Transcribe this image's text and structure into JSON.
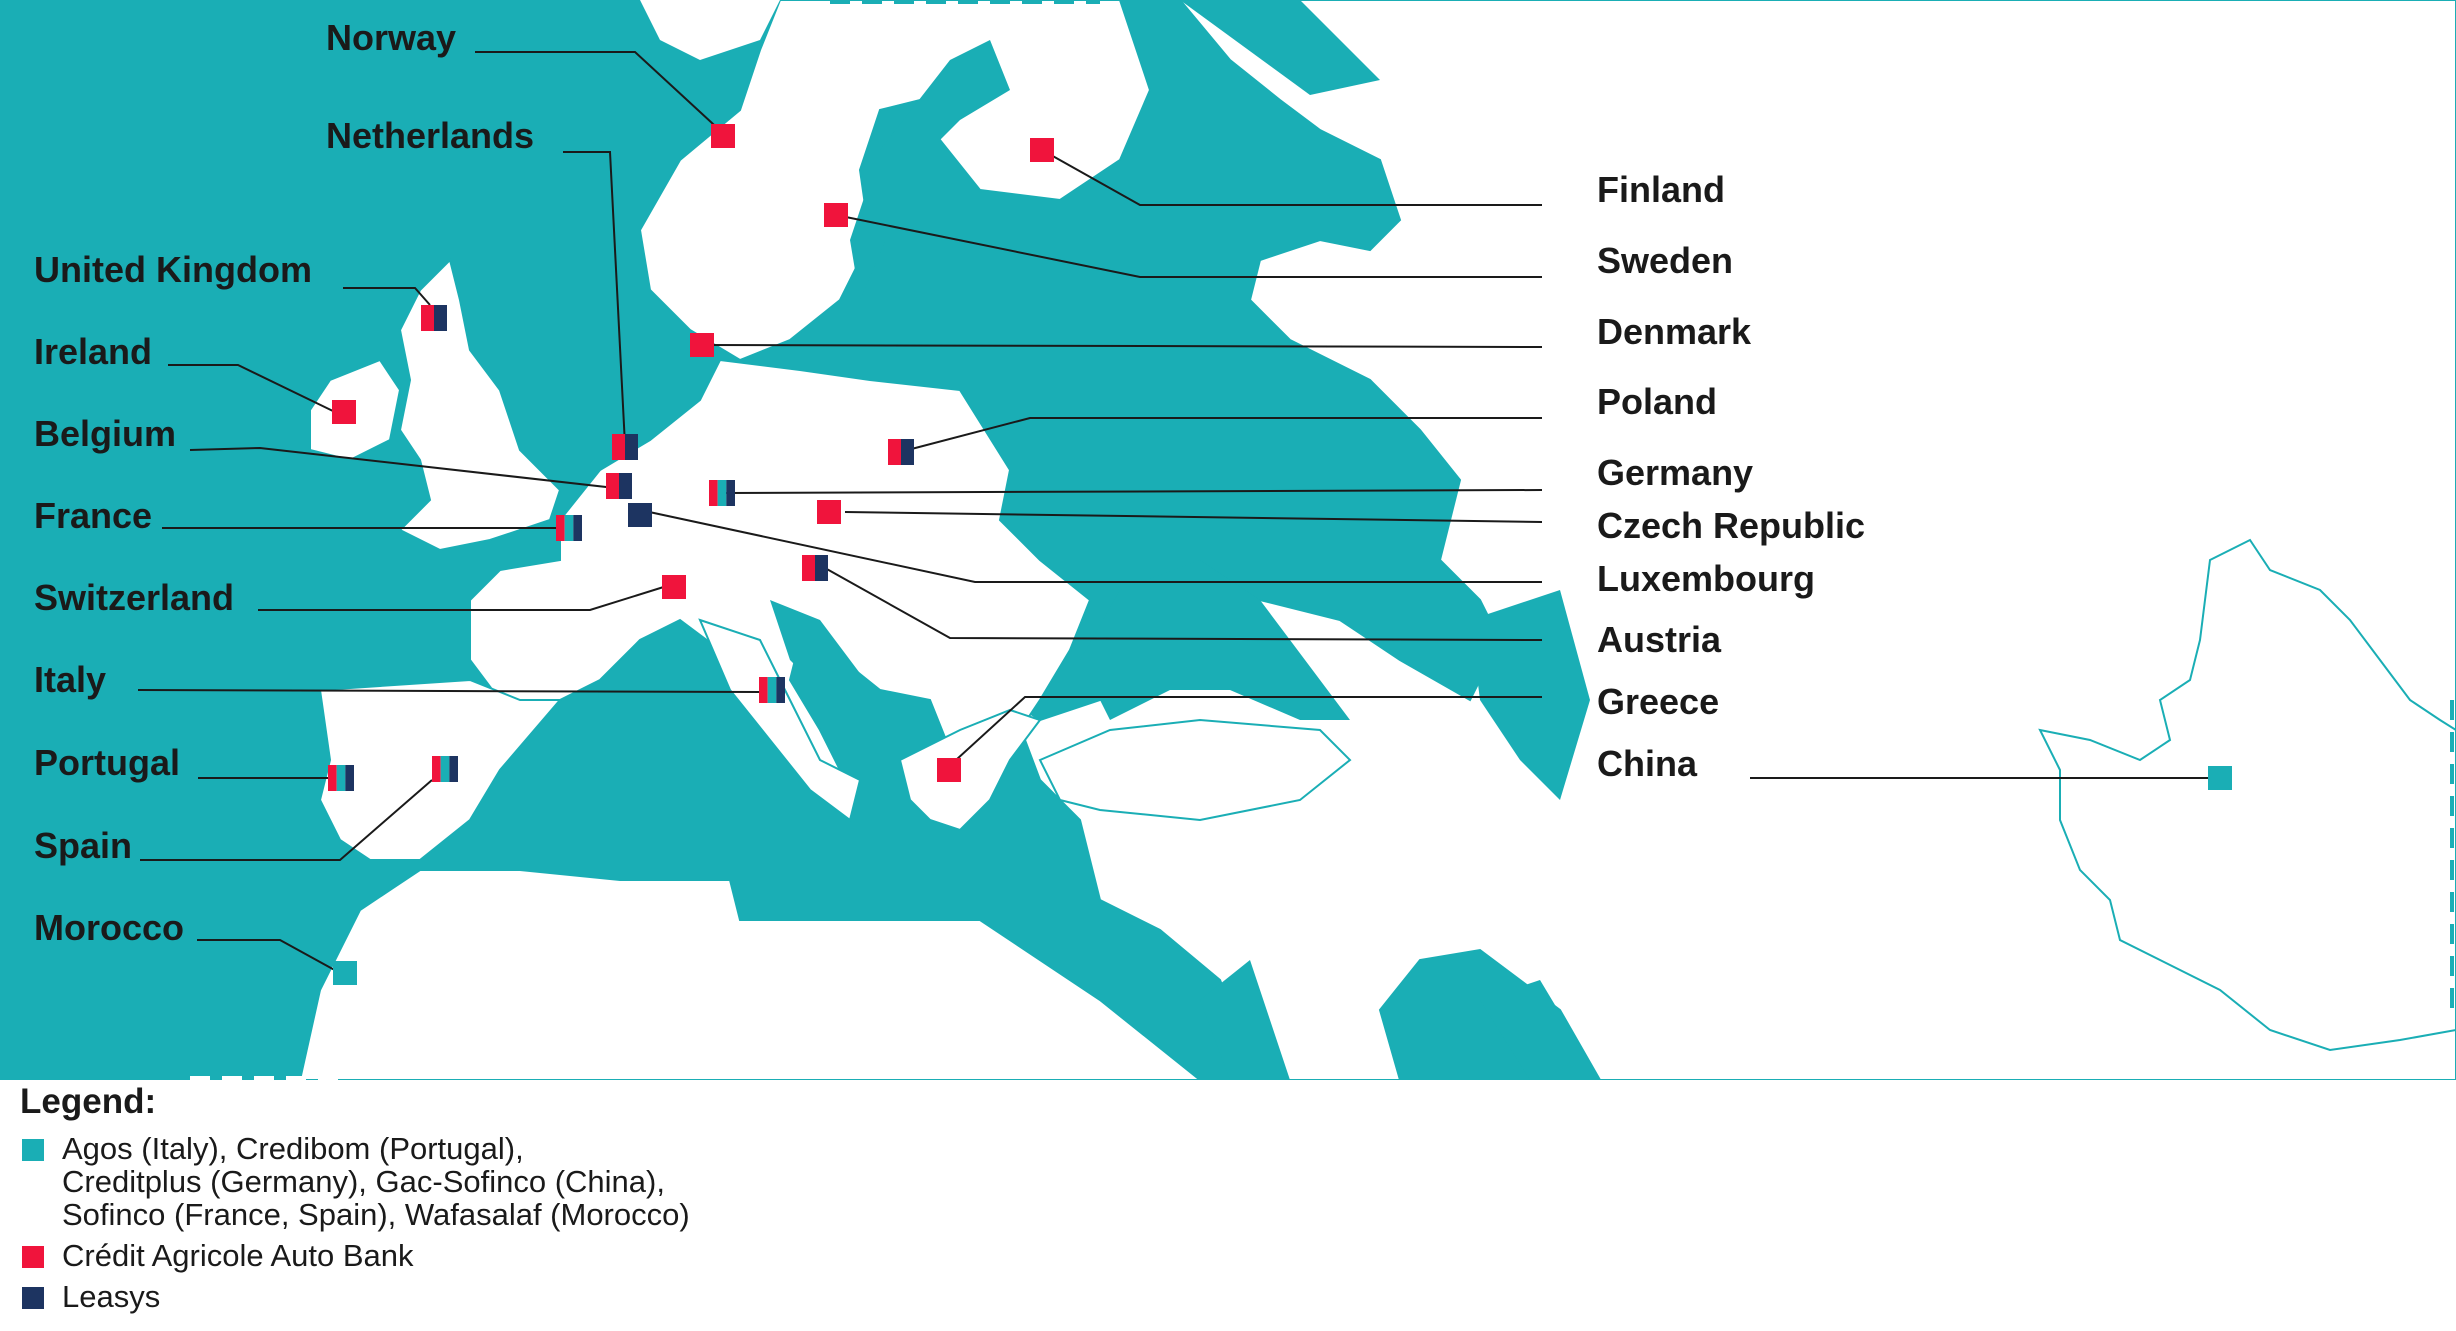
{
  "colors": {
    "sea": "#1aaeb5",
    "land": "#ffffff",
    "agos_group": "#1aaeb5",
    "ca_auto_bank": "#f0143c",
    "leasys": "#1d3461",
    "leader_line": "#1a1a1a"
  },
  "countries_left": [
    {
      "id": "norway",
      "label": "Norway",
      "markers": [
        "ca_auto_bank"
      ]
    },
    {
      "id": "netherlands",
      "label": "Netherlands",
      "markers": [
        "ca_auto_bank",
        "leasys"
      ]
    },
    {
      "id": "united-kingdom",
      "label": "United Kingdom",
      "markers": [
        "ca_auto_bank",
        "leasys"
      ]
    },
    {
      "id": "ireland",
      "label": "Ireland",
      "markers": [
        "ca_auto_bank"
      ]
    },
    {
      "id": "belgium",
      "label": "Belgium",
      "markers": [
        "ca_auto_bank",
        "leasys"
      ]
    },
    {
      "id": "france",
      "label": "France",
      "markers": [
        "ca_auto_bank",
        "agos_group",
        "leasys"
      ]
    },
    {
      "id": "switzerland",
      "label": "Switzerland",
      "markers": [
        "ca_auto_bank"
      ]
    },
    {
      "id": "italy",
      "label": "Italy",
      "markers": [
        "ca_auto_bank",
        "agos_group",
        "leasys"
      ]
    },
    {
      "id": "portugal",
      "label": "Portugal",
      "markers": [
        "ca_auto_bank",
        "agos_group",
        "leasys"
      ]
    },
    {
      "id": "spain",
      "label": "Spain",
      "markers": [
        "ca_auto_bank",
        "agos_group",
        "leasys"
      ]
    },
    {
      "id": "morocco",
      "label": "Morocco",
      "markers": [
        "agos_group"
      ]
    }
  ],
  "countries_right": [
    {
      "id": "finland",
      "label": "Finland",
      "markers": [
        "ca_auto_bank"
      ]
    },
    {
      "id": "sweden",
      "label": "Sweden",
      "markers": [
        "ca_auto_bank"
      ]
    },
    {
      "id": "denmark",
      "label": "Denmark",
      "markers": [
        "ca_auto_bank"
      ]
    },
    {
      "id": "poland",
      "label": "Poland",
      "markers": [
        "ca_auto_bank",
        "leasys"
      ]
    },
    {
      "id": "germany",
      "label": "Germany",
      "markers": [
        "ca_auto_bank",
        "agos_group",
        "leasys"
      ]
    },
    {
      "id": "czech-republic",
      "label": "Czech Republic",
      "markers": [
        "ca_auto_bank"
      ]
    },
    {
      "id": "luxembourg",
      "label": "Luxembourg",
      "markers": [
        "leasys"
      ]
    },
    {
      "id": "austria",
      "label": "Austria",
      "markers": [
        "ca_auto_bank",
        "leasys"
      ]
    },
    {
      "id": "greece",
      "label": "Greece",
      "markers": [
        "ca_auto_bank"
      ]
    },
    {
      "id": "china",
      "label": "China",
      "markers": [
        "agos_group"
      ]
    }
  ],
  "legend": {
    "title": "Legend:",
    "items": [
      {
        "key": "agos_group",
        "lines": [
          "Agos (Italy), Credibom (Portugal),",
          "Creditplus (Germany), Gac-Sofinco (China),",
          "Sofinco (France, Spain), Wafasalaf (Morocco)"
        ]
      },
      {
        "key": "ca_auto_bank",
        "lines": [
          "Crédit Agricole Auto Bank"
        ]
      },
      {
        "key": "leasys",
        "lines": [
          "Leasys"
        ]
      }
    ]
  }
}
